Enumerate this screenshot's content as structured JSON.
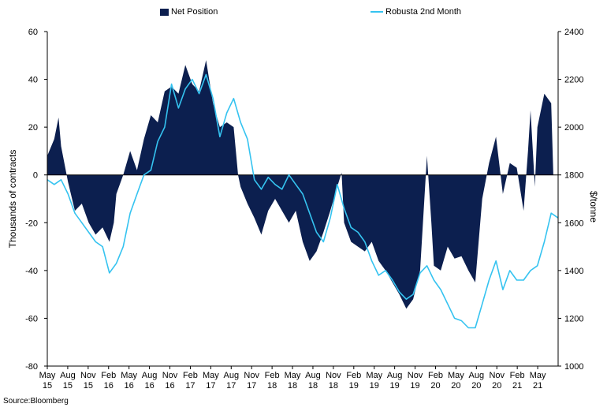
{
  "legend": {
    "bar_label": "Net Position",
    "line_label": "Robusta 2nd Month"
  },
  "source": "Source:Bloomberg",
  "chart_data": {
    "type": "area",
    "ylabel_left": "Thousands of contracts",
    "ylabel_right": "$/tonne",
    "ylim_left": [
      -80,
      60
    ],
    "ylim_right": [
      1000,
      2400
    ],
    "yticks_left": [
      -80,
      -60,
      -40,
      -20,
      0,
      20,
      40,
      60
    ],
    "yticks_right": [
      1000,
      1200,
      1400,
      1600,
      1800,
      2000,
      2200,
      2400
    ],
    "x_tick_labels": [
      [
        "May",
        "15"
      ],
      [
        "Aug",
        "15"
      ],
      [
        "Nov",
        "15"
      ],
      [
        "Feb",
        "16"
      ],
      [
        "May",
        "16"
      ],
      [
        "Aug",
        "16"
      ],
      [
        "Nov",
        "16"
      ],
      [
        "Feb",
        "17"
      ],
      [
        "May",
        "17"
      ],
      [
        "Aug",
        "17"
      ],
      [
        "Nov",
        "17"
      ],
      [
        "Feb",
        "18"
      ],
      [
        "May",
        "18"
      ],
      [
        "Aug",
        "18"
      ],
      [
        "Nov",
        "18"
      ],
      [
        "Feb",
        "19"
      ],
      [
        "May",
        "19"
      ],
      [
        "Aug",
        "19"
      ],
      [
        "Nov",
        "19"
      ],
      [
        "Feb",
        "20"
      ],
      [
        "May",
        "20"
      ],
      [
        "Aug",
        "20"
      ],
      [
        "Nov",
        "20"
      ],
      [
        "Feb",
        "21"
      ],
      [
        "May",
        "21"
      ]
    ],
    "x_range": [
      "2015-05",
      "2021-07"
    ],
    "colors": {
      "net_position": "#0c1f4f",
      "robusta": "#35c3f0"
    },
    "series": [
      {
        "name": "Net Position",
        "style": "area",
        "axis": "left",
        "points": [
          [
            "2015-05",
            8
          ],
          [
            "2015-06",
            15
          ],
          [
            "2015-06-20",
            24
          ],
          [
            "2015-07",
            12
          ],
          [
            "2015-08",
            -3
          ],
          [
            "2015-09",
            -15
          ],
          [
            "2015-10",
            -12
          ],
          [
            "2015-11",
            -20
          ],
          [
            "2015-12",
            -25
          ],
          [
            "2016-01",
            -22
          ],
          [
            "2016-02",
            -28
          ],
          [
            "2016-02-20",
            -20
          ],
          [
            "2016-03",
            -8
          ],
          [
            "2016-04",
            0
          ],
          [
            "2016-05",
            10
          ],
          [
            "2016-06",
            2
          ],
          [
            "2016-07",
            15
          ],
          [
            "2016-08",
            25
          ],
          [
            "2016-09",
            22
          ],
          [
            "2016-10",
            35
          ],
          [
            "2016-11",
            37
          ],
          [
            "2016-12",
            34
          ],
          [
            "2017-01",
            46
          ],
          [
            "2017-02",
            38
          ],
          [
            "2017-03",
            35
          ],
          [
            "2017-04",
            48
          ],
          [
            "2017-05",
            30
          ],
          [
            "2017-06",
            20
          ],
          [
            "2017-07",
            22
          ],
          [
            "2017-08",
            20
          ],
          [
            "2017-08-20",
            0
          ],
          [
            "2017-09",
            -5
          ],
          [
            "2017-10",
            -12
          ],
          [
            "2017-11",
            -18
          ],
          [
            "2017-12",
            -25
          ],
          [
            "2018-01",
            -15
          ],
          [
            "2018-02",
            -10
          ],
          [
            "2018-03",
            -15
          ],
          [
            "2018-04",
            -20
          ],
          [
            "2018-05",
            -15
          ],
          [
            "2018-06",
            -28
          ],
          [
            "2018-07",
            -36
          ],
          [
            "2018-08",
            -32
          ],
          [
            "2018-09",
            -24
          ],
          [
            "2018-10",
            -15
          ],
          [
            "2018-11",
            -5
          ],
          [
            "2018-11-20",
            1
          ],
          [
            "2018-12",
            -20
          ],
          [
            "2019-01",
            -28
          ],
          [
            "2019-02",
            -30
          ],
          [
            "2019-03",
            -32
          ],
          [
            "2019-04",
            -28
          ],
          [
            "2019-05",
            -36
          ],
          [
            "2019-06",
            -40
          ],
          [
            "2019-07",
            -45
          ],
          [
            "2019-08",
            -50
          ],
          [
            "2019-09",
            -56
          ],
          [
            "2019-10",
            -52
          ],
          [
            "2019-11",
            -40
          ],
          [
            "2019-12",
            8
          ],
          [
            "2019-12-20",
            -20
          ],
          [
            "2020-01",
            -38
          ],
          [
            "2020-02",
            -40
          ],
          [
            "2020-03",
            -30
          ],
          [
            "2020-04",
            -35
          ],
          [
            "2020-05",
            -34
          ],
          [
            "2020-06",
            -40
          ],
          [
            "2020-07",
            -45
          ],
          [
            "2020-08",
            -10
          ],
          [
            "2020-09",
            5
          ],
          [
            "2020-10",
            16
          ],
          [
            "2020-11",
            -8
          ],
          [
            "2020-12",
            5
          ],
          [
            "2021-01",
            3
          ],
          [
            "2021-02",
            -15
          ],
          [
            "2021-02-20",
            10
          ],
          [
            "2021-03",
            27
          ],
          [
            "2021-03-20",
            -5
          ],
          [
            "2021-04",
            20
          ],
          [
            "2021-05",
            34
          ],
          [
            "2021-06",
            30
          ],
          [
            "2021-06-10",
            0
          ]
        ]
      },
      {
        "name": "Robusta 2nd Month",
        "style": "line",
        "axis": "right",
        "points": [
          [
            "2015-05",
            1780
          ],
          [
            "2015-06",
            1760
          ],
          [
            "2015-07",
            1780
          ],
          [
            "2015-08",
            1720
          ],
          [
            "2015-09",
            1640
          ],
          [
            "2015-10",
            1600
          ],
          [
            "2015-11",
            1560
          ],
          [
            "2015-12",
            1520
          ],
          [
            "2016-01",
            1500
          ],
          [
            "2016-02",
            1390
          ],
          [
            "2016-03",
            1430
          ],
          [
            "2016-04",
            1500
          ],
          [
            "2016-05",
            1640
          ],
          [
            "2016-06",
            1720
          ],
          [
            "2016-07",
            1800
          ],
          [
            "2016-08",
            1820
          ],
          [
            "2016-09",
            1940
          ],
          [
            "2016-10",
            2000
          ],
          [
            "2016-11",
            2180
          ],
          [
            "2016-12",
            2080
          ],
          [
            "2017-01",
            2160
          ],
          [
            "2017-02",
            2200
          ],
          [
            "2017-03",
            2140
          ],
          [
            "2017-04",
            2220
          ],
          [
            "2017-05",
            2120
          ],
          [
            "2017-06",
            1960
          ],
          [
            "2017-07",
            2060
          ],
          [
            "2017-08",
            2120
          ],
          [
            "2017-09",
            2020
          ],
          [
            "2017-10",
            1950
          ],
          [
            "2017-11",
            1780
          ],
          [
            "2017-12",
            1740
          ],
          [
            "2018-01",
            1790
          ],
          [
            "2018-02",
            1760
          ],
          [
            "2018-03",
            1740
          ],
          [
            "2018-04",
            1800
          ],
          [
            "2018-05",
            1760
          ],
          [
            "2018-06",
            1720
          ],
          [
            "2018-07",
            1640
          ],
          [
            "2018-08",
            1560
          ],
          [
            "2018-09",
            1520
          ],
          [
            "2018-10",
            1620
          ],
          [
            "2018-11",
            1760
          ],
          [
            "2018-12",
            1660
          ],
          [
            "2019-01",
            1580
          ],
          [
            "2019-02",
            1560
          ],
          [
            "2019-03",
            1520
          ],
          [
            "2019-04",
            1440
          ],
          [
            "2019-05",
            1380
          ],
          [
            "2019-06",
            1400
          ],
          [
            "2019-07",
            1360
          ],
          [
            "2019-08",
            1310
          ],
          [
            "2019-09",
            1280
          ],
          [
            "2019-10",
            1300
          ],
          [
            "2019-11",
            1390
          ],
          [
            "2019-12",
            1420
          ],
          [
            "2020-01",
            1360
          ],
          [
            "2020-02",
            1320
          ],
          [
            "2020-03",
            1260
          ],
          [
            "2020-04",
            1200
          ],
          [
            "2020-05",
            1190
          ],
          [
            "2020-06",
            1160
          ],
          [
            "2020-07",
            1160
          ],
          [
            "2020-08",
            1260
          ],
          [
            "2020-09",
            1360
          ],
          [
            "2020-10",
            1440
          ],
          [
            "2020-11",
            1320
          ],
          [
            "2020-12",
            1400
          ],
          [
            "2021-01",
            1360
          ],
          [
            "2021-02",
            1360
          ],
          [
            "2021-03",
            1400
          ],
          [
            "2021-04",
            1420
          ],
          [
            "2021-05",
            1520
          ],
          [
            "2021-06",
            1640
          ],
          [
            "2021-07",
            1620
          ]
        ]
      }
    ]
  }
}
